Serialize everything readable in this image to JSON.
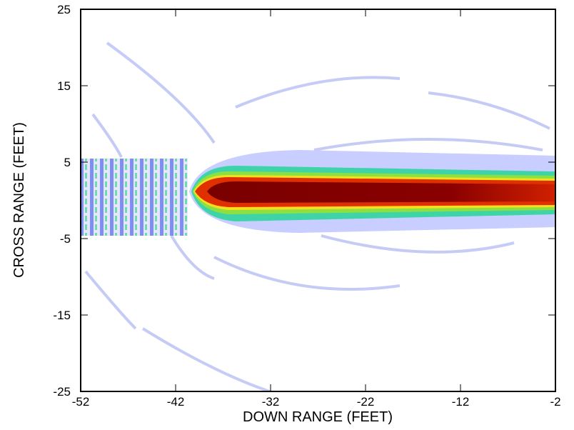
{
  "chart_data": {
    "type": "heatmap",
    "xlabel": "DOWN RANGE (FEET)",
    "ylabel": "CROSS RANGE (FEET)",
    "xlim": [
      -52,
      -2
    ],
    "xticks": [
      -52,
      -42,
      -32,
      -22,
      -12,
      -2
    ],
    "ylim": [
      -25,
      25
    ],
    "yticks": [
      -25,
      -15,
      -5,
      5,
      15,
      25
    ]
  }
}
